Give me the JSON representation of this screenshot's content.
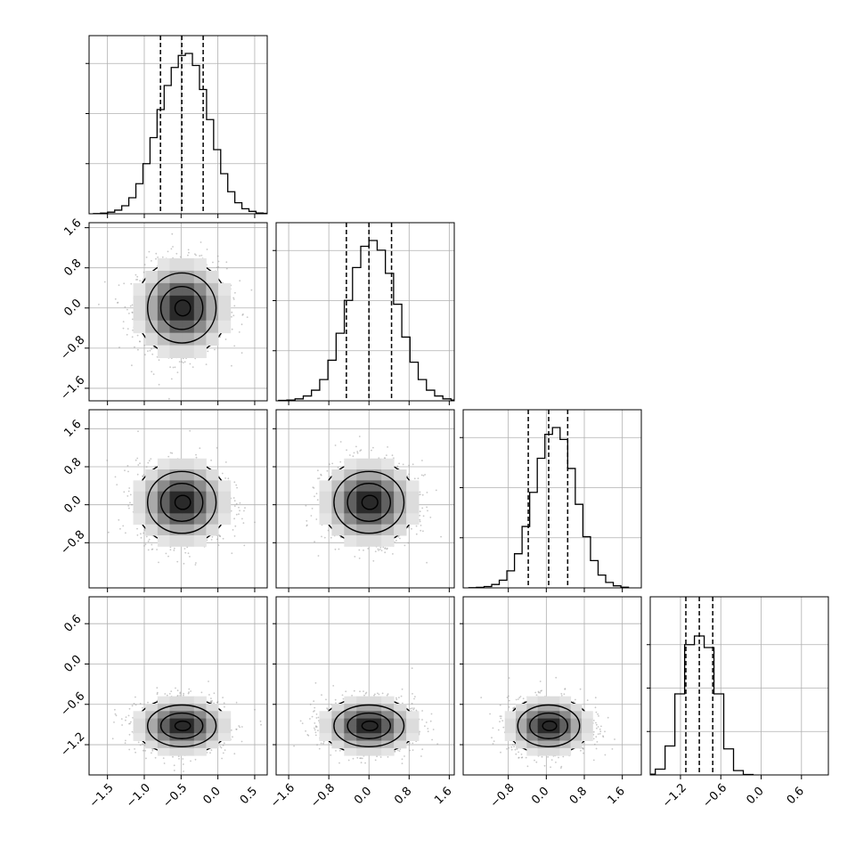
{
  "chart_data": {
    "type": "corner",
    "grid": true,
    "title": "",
    "colors": {
      "hist": "#000000",
      "grid": "#b0b0b0",
      "points": "#9a9a9a",
      "density": "#000000",
      "contour_fill": "#ffffff"
    },
    "variables": [
      {
        "range": [
          -1.75,
          0.67
        ],
        "ticks": [
          -1.5,
          -1.0,
          -0.5,
          0.0,
          0.5
        ],
        "tick_labels": [
          "−1.5",
          "−1.0",
          "−0.5",
          "0.0",
          "0.5"
        ],
        "quantiles": [
          -0.78,
          -0.49,
          -0.2
        ],
        "center": -0.49,
        "sigma": 0.3,
        "hist_counts": [
          1,
          3,
          8,
          18,
          40,
          80,
          150,
          250,
          380,
          520,
          640,
          730,
          790,
          800,
          740,
          620,
          470,
          320,
          200,
          110,
          55,
          25,
          12,
          4,
          2
        ],
        "hist_peak_frac": 0.9
      },
      {
        "range": [
          -1.85,
          1.7
        ],
        "ticks": [
          -1.6,
          -0.8,
          0.0,
          0.8,
          1.6
        ],
        "tick_labels": [
          "−1.6",
          "−0.8",
          "0.0",
          "0.8",
          "1.6"
        ],
        "quantiles": [
          -0.45,
          0.0,
          0.45
        ],
        "center": 0.0,
        "sigma": 0.45,
        "hist_counts": [
          2,
          4,
          10,
          25,
          55,
          110,
          210,
          350,
          520,
          690,
          800,
          830,
          780,
          660,
          500,
          330,
          200,
          110,
          55,
          25,
          10,
          4
        ],
        "hist_peak_frac": 0.9
      },
      {
        "range": [
          -1.75,
          2.0
        ],
        "ticks": [
          -0.8,
          0.0,
          0.8,
          1.6
        ],
        "tick_labels": [
          "−0.8",
          "0.0",
          "0.8",
          "1.6"
        ],
        "quantiles": [
          -0.38,
          0.05,
          0.45
        ],
        "center": 0.05,
        "sigma": 0.42,
        "hist_counts": [
          1,
          3,
          8,
          20,
          45,
          100,
          200,
          360,
          560,
          760,
          900,
          940,
          870,
          700,
          490,
          300,
          160,
          75,
          32,
          12,
          4
        ],
        "hist_peak_frac": 0.9
      },
      {
        "range": [
          -1.65,
          1.0
        ],
        "ticks": [
          -1.2,
          -0.6,
          0.0,
          0.6
        ],
        "tick_labels": [
          "−1.2",
          "−0.6",
          "0.0",
          "0.6"
        ],
        "quantiles": [
          -1.12,
          -0.92,
          -0.72
        ],
        "center": -0.92,
        "sigma": 0.2,
        "hist_counts": [
          5,
          40,
          200,
          560,
          900,
          960,
          880,
          560,
          180,
          30,
          3
        ],
        "hist_peak_frac": 0.78
      }
    ],
    "row_ticks": [
      {
        "ticks": [],
        "tick_labels": []
      },
      {
        "ticks": [
          -1.6,
          -0.8,
          0.0,
          0.8,
          1.6
        ],
        "tick_labels": [
          "−1.6",
          "−0.8",
          "0.0",
          "0.8",
          "1.6"
        ]
      },
      {
        "ticks": [
          -0.8,
          0.0,
          0.8,
          1.6
        ],
        "tick_labels": [
          "−0.8",
          "0.0",
          "0.8",
          "1.6"
        ]
      },
      {
        "ticks": [
          -1.2,
          -0.6,
          0.0,
          0.6
        ],
        "tick_labels": [
          "−1.2",
          "−0.6",
          "0.0",
          "0.6"
        ]
      }
    ]
  }
}
